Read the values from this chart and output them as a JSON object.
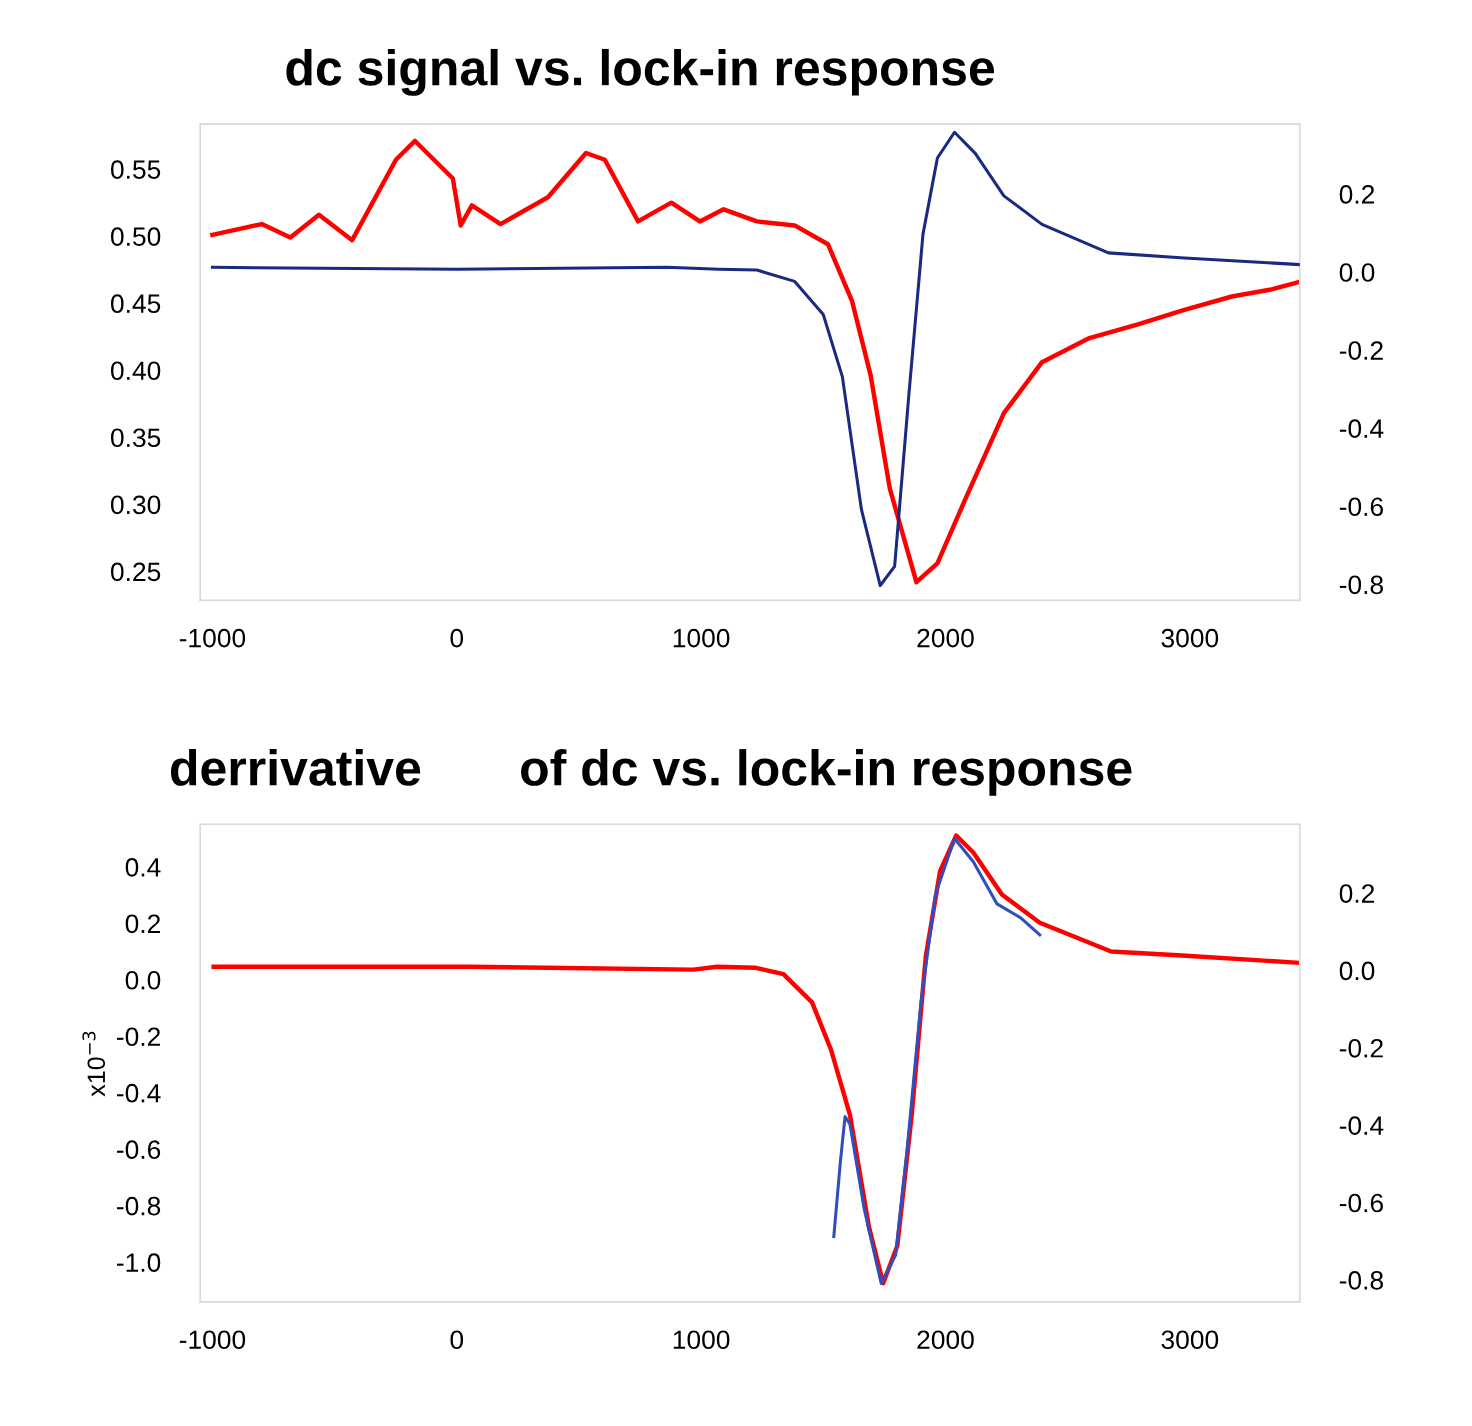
{
  "chart_data": [
    {
      "type": "line",
      "title": "dc signal vs. lock-in response",
      "xlim": [
        -1050,
        3450
      ],
      "xticks": [
        -1000,
        0,
        1000,
        2000,
        3000
      ],
      "ylim": [
        0.2284,
        0.5836
      ],
      "yticks": [
        {
          "value": 0.25,
          "label": "0.25"
        },
        {
          "value": 0.3,
          "label": "0.30"
        },
        {
          "value": 0.35,
          "label": "0.35"
        },
        {
          "value": 0.4,
          "label": "0.40"
        },
        {
          "value": 0.45,
          "label": "0.45"
        },
        {
          "value": 0.5,
          "label": "0.50"
        },
        {
          "value": 0.55,
          "label": "0.55"
        }
      ],
      "y2lim": [
        -0.841,
        0.379
      ],
      "y2ticks": [
        -0.8,
        -0.6,
        -0.4,
        -0.2,
        {
          "value": 0,
          "label": "0.0"
        },
        0.2
      ],
      "grid": false,
      "series": [
        {
          "color": "#ff0000",
          "x": [
            -1000,
            -798,
            -681,
            -564,
            -428,
            -249,
            -171,
            -16,
            16,
            62,
            179,
            373,
            529,
            606,
            742,
            878,
            995,
            1092,
            1228,
            1383,
            1519,
            1617,
            1694,
            1772,
            1831,
            1881,
            1967,
            2084,
            2239,
            2395,
            2589,
            2784,
            2978,
            3172,
            3327,
            3450
          ],
          "values": [
            0.501,
            0.509,
            0.499,
            0.516,
            0.497,
            0.557,
            0.571,
            0.543,
            0.508,
            0.523,
            0.509,
            0.529,
            0.562,
            0.557,
            0.511,
            0.525,
            0.511,
            0.52,
            0.511,
            0.508,
            0.494,
            0.452,
            0.396,
            0.312,
            0.274,
            0.242,
            0.256,
            0.305,
            0.368,
            0.406,
            0.424,
            0.434,
            0.445,
            0.455,
            0.46,
            0.466
          ]
        },
        {
          "color": "#1a2a80",
          "axis": "y2",
          "x": [
            -1000,
            0,
            860,
            1072,
            1228,
            1383,
            1500,
            1578,
            1656,
            1733,
            1792,
            1850,
            1908,
            1967,
            2037,
            2122,
            2239,
            2395,
            2667,
            2978,
            3450
          ],
          "values": [
            0.012,
            0.007,
            0.012,
            0.007,
            0.005,
            -0.024,
            -0.109,
            -0.268,
            -0.608,
            -0.803,
            -0.754,
            -0.316,
            0.097,
            0.292,
            0.358,
            0.304,
            0.195,
            0.122,
            0.049,
            0.036,
            0.019
          ]
        }
      ]
    },
    {
      "type": "line",
      "title": "derrivative       of dc vs. lock-in response",
      "ylabel": "x10$^{−3}$",
      "xlim": [
        -1050,
        3450
      ],
      "xticks": [
        -1000,
        0,
        1000,
        2000,
        3000
      ],
      "ylim": [
        -1.141,
        0.551
      ],
      "yticks": [
        {
          "value": -1,
          "label": "-1.0"
        },
        -0.8,
        -0.6,
        -0.4,
        -0.2,
        {
          "value": 0,
          "label": "0.0"
        },
        0.2,
        0.4
      ],
      "y2lim": [
        -0.857,
        0.378
      ],
      "y2ticks": [
        -0.8,
        -0.6,
        -0.4,
        -0.2,
        {
          "value": 0,
          "label": "0.0"
        },
        0.2
      ],
      "grid": false,
      "series": [
        {
          "color": "#ff0000",
          "x": [
            -995,
            54,
            968,
            1065,
            1220,
            1337,
            1454,
            1531,
            1609,
            1687,
            1745,
            1803,
            1862,
            1920,
            1978,
            2044,
            2114,
            2231,
            2386,
            2678,
            2969,
            3450
          ],
          "values": [
            0.046,
            0.046,
            0.036,
            0.046,
            0.043,
            0.02,
            -0.08,
            -0.246,
            -0.478,
            -0.876,
            -1.075,
            -0.942,
            -0.478,
            0.086,
            0.385,
            0.511,
            0.451,
            0.302,
            0.202,
            0.1,
            0.086,
            0.06
          ]
        },
        {
          "color": "#2f4fc0",
          "axis": "y2",
          "x": [
            1543,
            1570,
            1589,
            1609,
            1667,
            1737,
            1796,
            1842,
            1900,
            1959,
            2037,
            2114,
            2211,
            2308,
            2386
          ],
          "values": [
            -0.688,
            -0.494,
            -0.378,
            -0.397,
            -0.615,
            -0.809,
            -0.736,
            -0.47,
            -0.082,
            0.196,
            0.341,
            0.281,
            0.172,
            0.136,
            0.092
          ]
        }
      ]
    }
  ]
}
